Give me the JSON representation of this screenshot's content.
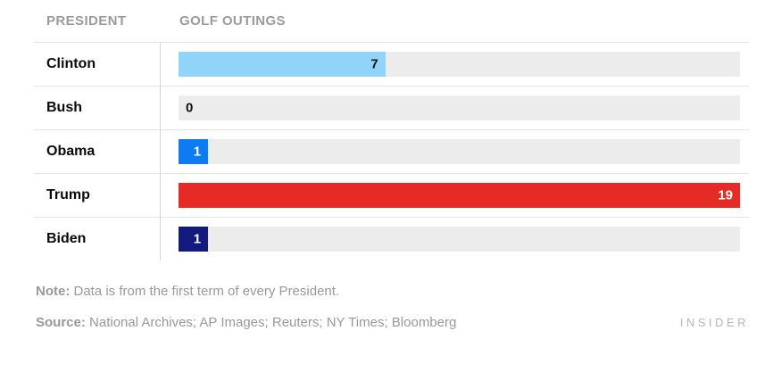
{
  "chart_data": {
    "type": "bar",
    "orientation": "horizontal",
    "column_headers": {
      "president": "PRESIDENT",
      "outings": "GOLF OUTINGS"
    },
    "categories": [
      "Clinton",
      "Bush",
      "Obama",
      "Trump",
      "Biden"
    ],
    "values": [
      7,
      0,
      1,
      19,
      1
    ],
    "max_value": 19,
    "track_color": "#ececec",
    "rows": [
      {
        "label": "Clinton",
        "value": 7,
        "value_label": "7",
        "bar_color": "#90d5f9",
        "value_color": "#111111",
        "value_position": "inside-right"
      },
      {
        "label": "Bush",
        "value": 0,
        "value_label": "0",
        "bar_color": "#ececec",
        "value_color": "#111111",
        "value_position": "track-left"
      },
      {
        "label": "Obama",
        "value": 1,
        "value_label": "1",
        "bar_color": "#0d7cf2",
        "value_color": "#ffffff",
        "value_position": "inside-right"
      },
      {
        "label": "Trump",
        "value": 19,
        "value_label": "19",
        "bar_color": "#e62a25",
        "value_color": "#ffffff",
        "value_position": "inside-right"
      },
      {
        "label": "Biden",
        "value": 1,
        "value_label": "1",
        "bar_color": "#131a7e",
        "value_color": "#ffffff",
        "value_position": "inside-right"
      }
    ]
  },
  "footer": {
    "note_label": "Note:",
    "note_text": "Data is from the first term of every President.",
    "source_label": "Source:",
    "source_text": "National Archives; AP Images; Reuters; NY Times; Bloomberg"
  },
  "branding": {
    "logo_text": "INSIDER"
  }
}
